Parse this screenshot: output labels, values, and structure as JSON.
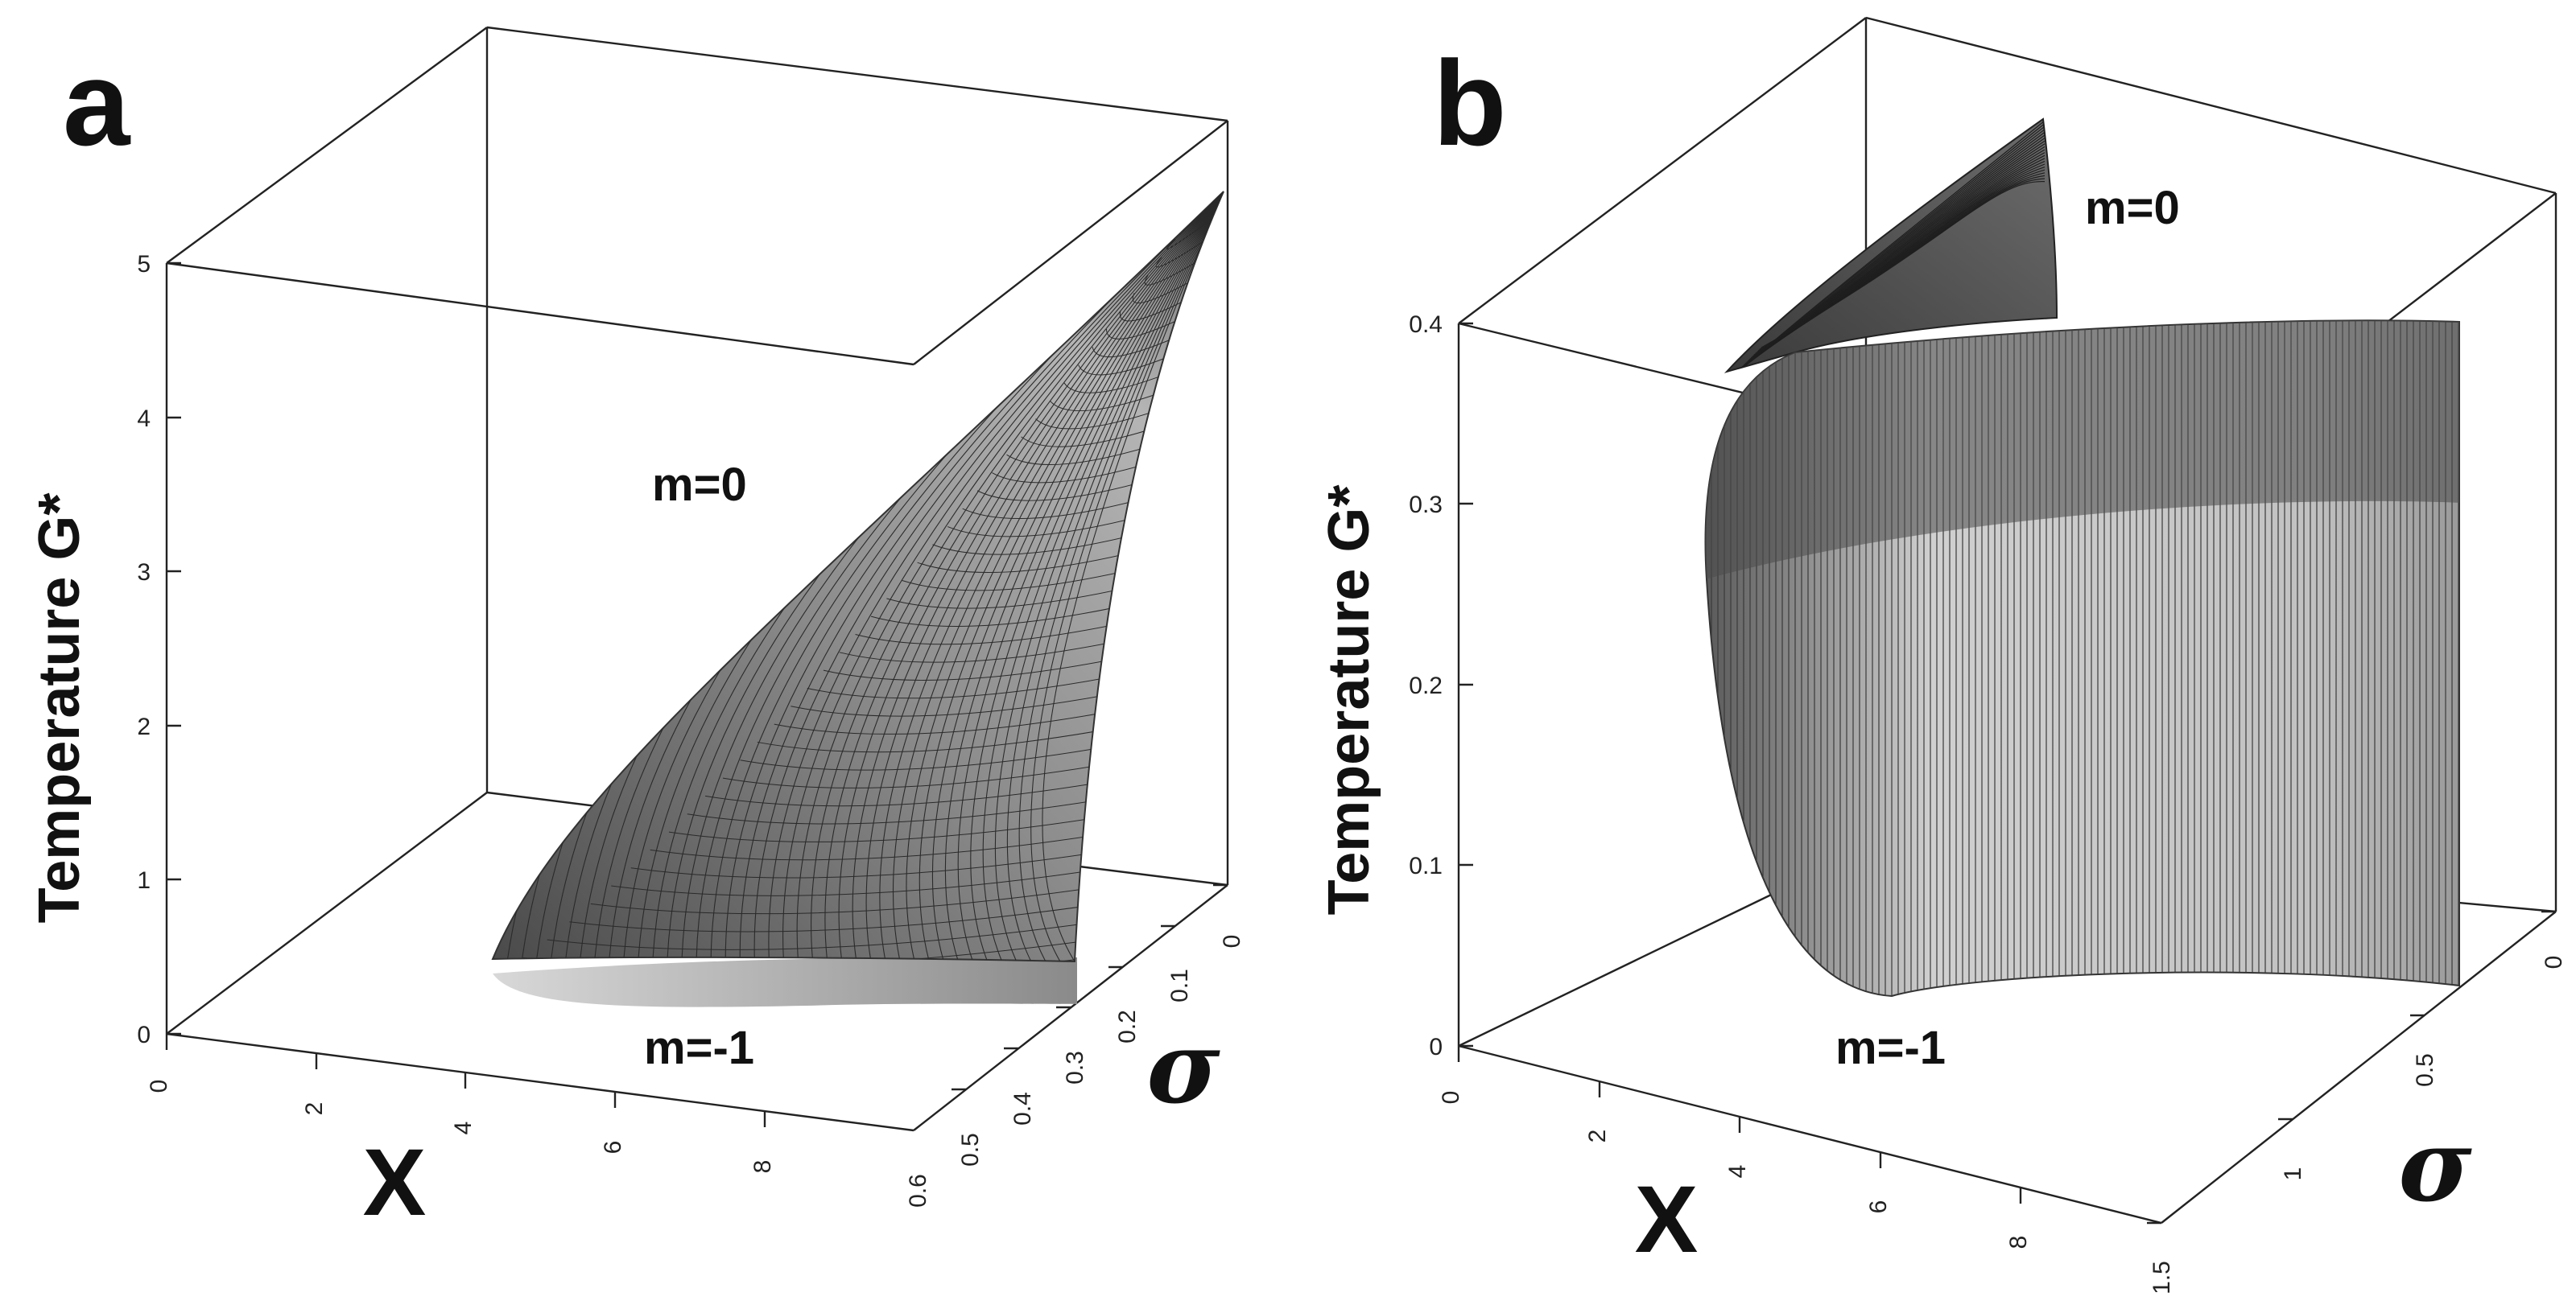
{
  "chart_data": [
    {
      "panel": "a",
      "type": "surface3d",
      "zlabel": "Temperature G*",
      "xlabel": "X",
      "ylabel": "σ",
      "xlim": [
        0,
        10
      ],
      "ylim": [
        0,
        0.6
      ],
      "zlim": [
        0,
        5
      ],
      "x_ticks": [
        "0",
        "2",
        "4",
        "6",
        "8"
      ],
      "y_ticks": [
        "0",
        "0.1",
        "0.2",
        "0.3",
        "0.4",
        "0.5",
        "0.6"
      ],
      "z_ticks": [
        "0",
        "1",
        "2",
        "3",
        "4",
        "5"
      ],
      "series": [
        {
          "name": "m=0",
          "color": "#6e6e6e"
        },
        {
          "name": "m=-1",
          "color": "#9a9a9a"
        }
      ]
    },
    {
      "panel": "b",
      "type": "surface3d",
      "zlabel": "Temperature G*",
      "xlabel": "X",
      "ylabel": "σ",
      "xlim": [
        0,
        10
      ],
      "ylim": [
        0,
        1.5
      ],
      "zlim": [
        0,
        0.4
      ],
      "x_ticks": [
        "0",
        "2",
        "4",
        "6",
        "8"
      ],
      "y_ticks": [
        "0",
        "0.5",
        "1",
        "1.5"
      ],
      "z_ticks": [
        "0",
        "0.1",
        "0.2",
        "0.3",
        "0.4"
      ],
      "series": [
        {
          "name": "m=0",
          "color": "#555555"
        },
        {
          "name": "m=-1",
          "color": "#bdbdbd"
        }
      ]
    }
  ]
}
